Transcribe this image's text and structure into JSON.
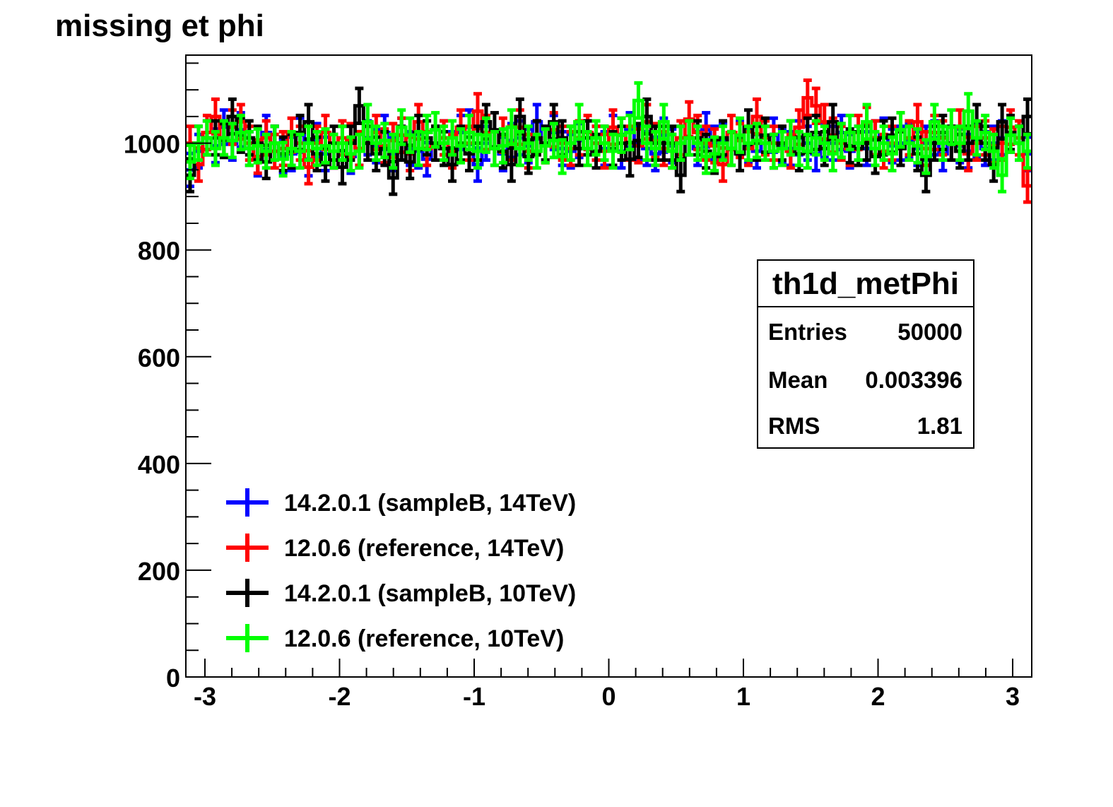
{
  "chart_data": {
    "type": "line",
    "title": "missing et phi",
    "xlabel": "",
    "ylabel": "",
    "xlim": [
      -3.1416,
      3.1416
    ],
    "ylim": [
      0,
      1165
    ],
    "x_ticks": [
      -3,
      -2,
      -1,
      0,
      1,
      2,
      3
    ],
    "y_ticks": [
      0,
      200,
      400,
      600,
      800,
      1000
    ],
    "x_tick_labels": [
      "-3",
      "-2",
      "-1",
      "0",
      "1",
      "2",
      "3"
    ],
    "y_tick_labels": [
      "0",
      "200",
      "400",
      "600",
      "800",
      "1000"
    ],
    "grid": false,
    "legend_position": "bottom-left",
    "bins": 100,
    "stats_box": {
      "name": "th1d_metPhi",
      "rows": [
        {
          "label": "Entries",
          "value": "50000"
        },
        {
          "label": "Mean",
          "value": "0.003396"
        },
        {
          "label": "RMS",
          "value": "1.81"
        }
      ]
    },
    "series": [
      {
        "name": "14.2.0.1 (sampleB, 14TeV)",
        "color": "#0000ff",
        "values": [
          950,
          985,
          1010,
          995,
          1030,
          1000,
          1025,
          990,
          970,
          1020,
          1000,
          975,
          980,
          1015,
          970,
          1005,
          980,
          985,
          1000,
          975,
          990,
          1010,
          995,
          1020,
          980,
          1015,
          990,
          985,
          970,
          1000,
          1010,
          990,
          1020,
          1030,
          960,
          1000,
          990,
          980,
          1005,
          1010,
          995,
          1040,
          1000,
          1020,
          990,
          985,
          1005,
          1010,
          1000,
          990,
          1020,
          985,
          1025,
          1000,
          990,
          980,
          1015,
          995,
          1000,
          1010,
          990,
          1025,
          1000,
          1005,
          990,
          1010,
          995,
          985,
          1000,
          1015,
          995,
          990,
          1010,
          1000,
          980,
          1005,
          1000,
          1020,
          985,
          1000,
          990,
          1010,
          1015,
          995,
          1000,
          1005,
          990,
          1000,
          1010,
          980,
          1000,
          995,
          985,
          1005,
          990,
          1000,
          1010,
          1015,
          1000,
          980
        ]
      },
      {
        "name": "12.0.6 (reference, 14TeV)",
        "color": "#ff0000",
        "values": [
          1000,
          960,
          1020,
          1050,
          1010,
          1030,
          1040,
          1000,
          975,
          1010,
          985,
          990,
          1015,
          1000,
          955,
          1000,
          1020,
          985,
          1010,
          1005,
          990,
          1000,
          1020,
          995,
          1005,
          1015,
          980,
          1040,
          990,
          1000,
          1010,
          985,
          1030,
          1000,
          1060,
          1020,
          990,
          1015,
          1000,
          1030,
          985,
          1010,
          995,
          1025,
          1000,
          990,
          1010,
          1020,
          1000,
          985,
          1030,
          1015,
          1000,
          995,
          1040,
          1005,
          990,
          985,
          1010,
          1045,
          1020,
          1000,
          995,
          960,
          1020,
          1005,
          990,
          1050,
          1010,
          1000,
          1000,
          985,
          1030,
          1085,
          1070,
          1040,
          1015,
          1000,
          990,
          1020,
          1035,
          1010,
          985,
          1000,
          1025,
          1010,
          1040,
          990,
          1020,
          1010,
          1000,
          1030,
          980,
          1000,
          1010,
          995,
          1000,
          1030,
          1010,
          920
        ]
      },
      {
        "name": "14.2.0.1 (sampleB, 10TeV)",
        "color": "#000000",
        "values": [
          940,
          1000,
          1010,
          1010,
          1005,
          1050,
          1015,
          1010,
          1000,
          965,
          1000,
          980,
          985,
          1020,
          1040,
          980,
          960,
          1000,
          955,
          1000,
          1070,
          1000,
          980,
          990,
          935,
          1000,
          965,
          1020,
          1010,
          1000,
          990,
          960,
          1000,
          980,
          1000,
          1040,
          1025,
          985,
          960,
          1050,
          975,
          1010,
          1000,
          1040,
          1010,
          1000,
          990,
          1010,
          985,
          1000,
          990,
          1000,
          970,
          1005,
          1050,
          1000,
          1000,
          1000,
          940,
          1010,
          1010,
          985,
          975,
          1010,
          990,
          980,
          1030,
          1000,
          1015,
          985,
          1000,
          1010,
          980,
          1015,
          1020,
          990,
          1040,
          1005,
          995,
          990,
          1000,
          975,
          1010,
          1015,
          990,
          1000,
          980,
          940,
          1000,
          1020,
          1000,
          985,
          1000,
          1040,
          1000,
          960,
          1040,
          1020,
          1000,
          1050
        ]
      },
      {
        "name": "12.0.6 (reference, 10TeV)",
        "color": "#00ff00",
        "values": [
          965,
          1000,
          1010,
          990,
          1010,
          1005,
          1020,
          990,
          995,
          985,
          1000,
          970,
          990,
          985,
          1000,
          990,
          995,
          985,
          1000,
          980,
          985,
          1040,
          1000,
          1005,
          985,
          1030,
          1015,
          990,
          1020,
          1025,
          1000,
          1010,
          995,
          1020,
          985,
          1015,
          990,
          995,
          1030,
          990,
          1000,
          985,
          995,
          1005,
          975,
          1000,
          1040,
          990,
          1010,
          1000,
          985,
          1015,
          1020,
          1080,
          1000,
          990,
          1040,
          985,
          1000,
          1010,
          1000,
          975,
          980,
          1000,
          990,
          1015,
          1000,
          1005,
          1000,
          985,
          990,
          1010,
          990,
          985,
          1010,
          1000,
          980,
          1005,
          1020,
          1000,
          1040,
          990,
          1000,
          980,
          1025,
          1000,
          995,
          975,
          1040,
          1000,
          1030,
          1000,
          1060,
          1010,
          1020,
          985,
          940,
          1015,
          1000,
          985
        ]
      }
    ]
  }
}
